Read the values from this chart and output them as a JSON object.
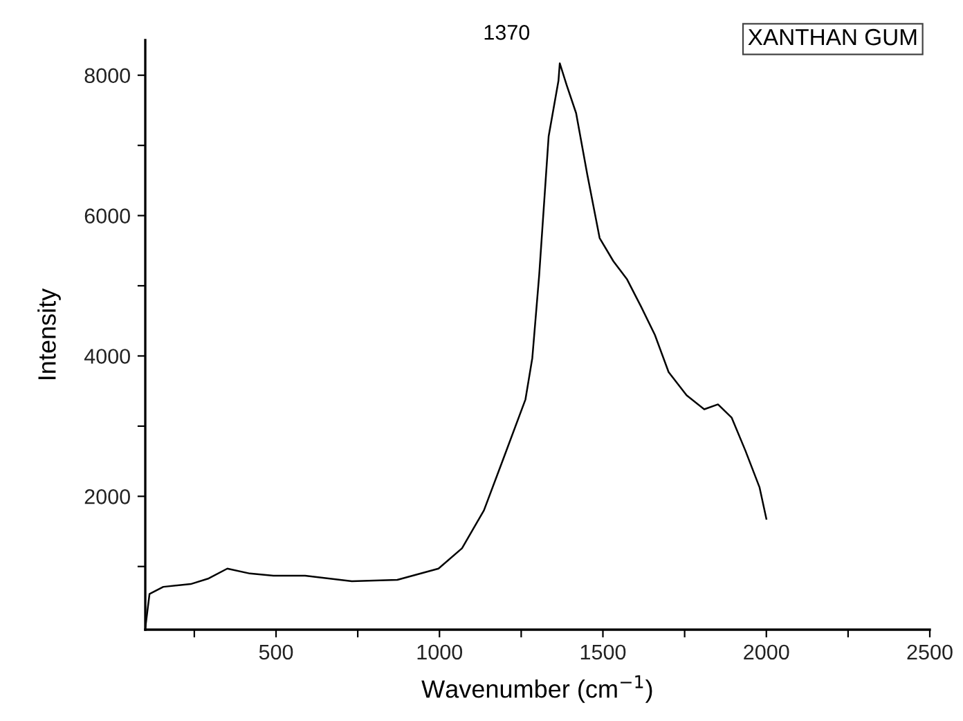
{
  "chart_data": {
    "type": "line",
    "xlabel": "Wavenumber (cm$^{−1}$)",
    "ylabel": "Intensity",
    "x": [
      100,
      113,
      155,
      239,
      294,
      351,
      420,
      492,
      589,
      732,
      871,
      997,
      1069,
      1136,
      1195,
      1263,
      1284,
      1305,
      1334,
      1364,
      1368,
      1389,
      1418,
      1452,
      1490,
      1532,
      1574,
      1617,
      1659,
      1701,
      1756,
      1810,
      1852,
      1894,
      1936,
      1979,
      2000
    ],
    "series": [
      {
        "color": "#000000",
        "values": [
          120,
          610,
          710,
          750,
          830,
          970,
          900,
          870,
          870,
          790,
          810,
          970,
          1260,
          1800,
          2530,
          3380,
          3970,
          5150,
          7130,
          7920,
          8170,
          7860,
          7460,
          6590,
          5680,
          5350,
          5090,
          4700,
          4300,
          3770,
          3440,
          3240,
          3310,
          3120,
          2650,
          2130,
          1680
        ]
      }
    ],
    "xlim": [
      100,
      2500
    ],
    "ylim": [
      100,
      8500
    ],
    "xticks": [
      {
        "value": 250,
        "label": null
      },
      500,
      {
        "value": 750,
        "label": null
      },
      1000,
      {
        "value": 1250,
        "label": null
      },
      1500,
      {
        "value": 1750,
        "label": null
      },
      2000,
      {
        "value": 2250,
        "label": null
      },
      2500
    ],
    "yticks": [
      {
        "value": 1000,
        "label": null
      },
      2000,
      {
        "value": 3000,
        "label": null
      },
      4000,
      {
        "value": 5000,
        "label": null
      },
      6000,
      {
        "value": 7000,
        "label": null
      },
      8000
    ],
    "annotations": [
      {
        "text": "1370",
        "x": 1370,
        "y": 8170
      },
      "XANTHAN GUM"
    ],
    "grid": false,
    "marker": "none",
    "line_style": "solid"
  }
}
